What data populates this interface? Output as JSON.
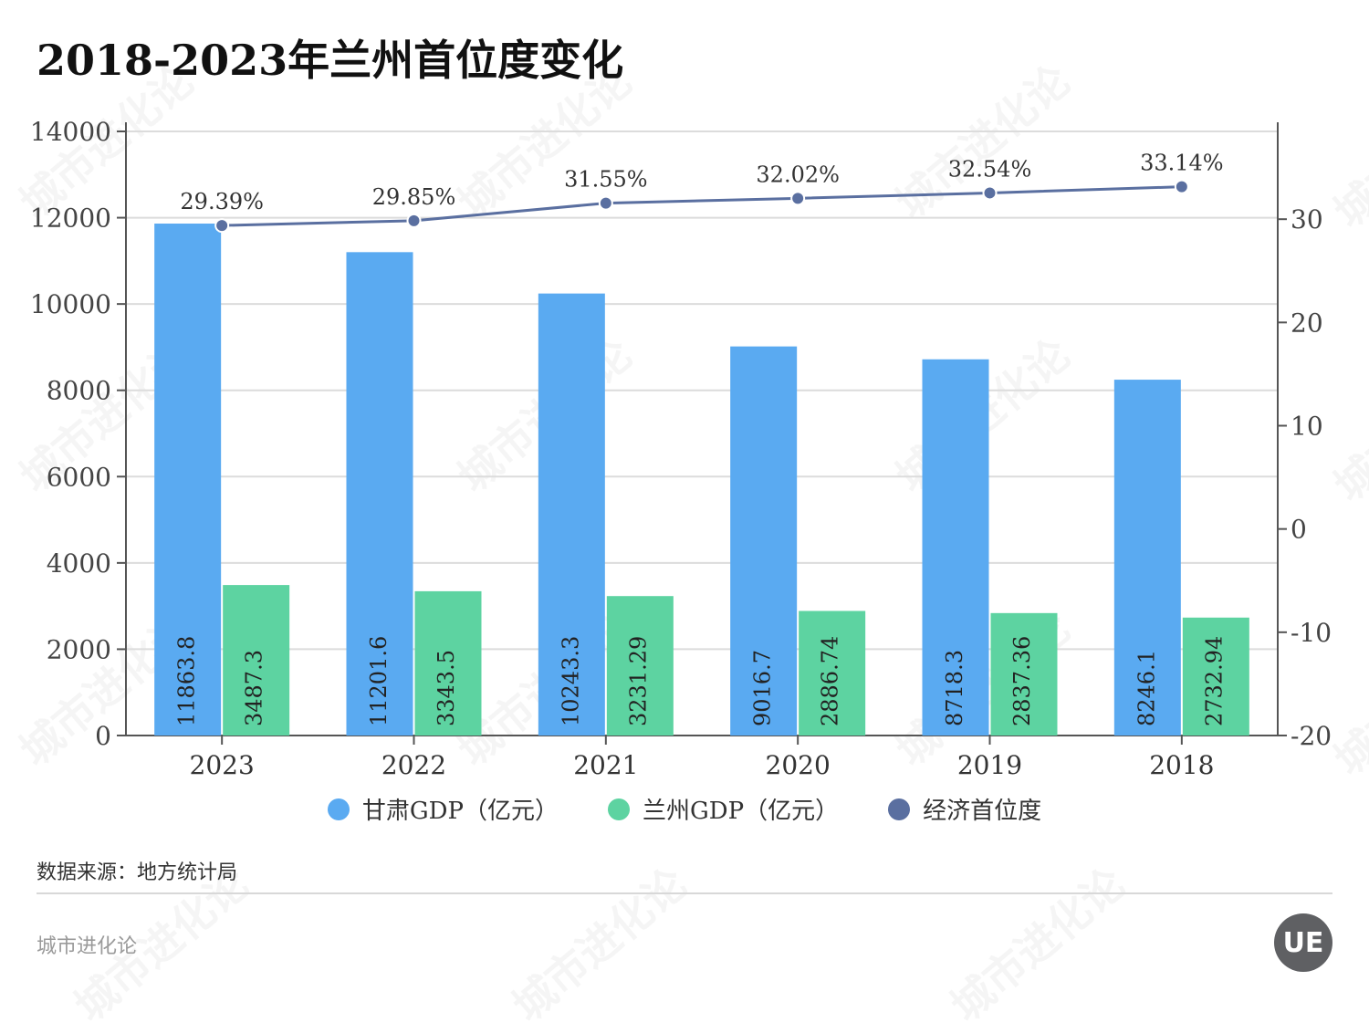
{
  "title": "2018-2023年兰州首位度变化",
  "source": "数据来源：地方统计局",
  "brand": "城市进化论",
  "logo_text": "UE",
  "watermark": "城市进化论",
  "colors": {
    "gansu": "#5aaaf1",
    "lanzhou": "#5dd3a1",
    "ratio": "#5a6fa0",
    "grid": "#dcdcdc",
    "axis": "#555555"
  },
  "legend": [
    {
      "label": "甘肃GDP（亿元）",
      "color": "#5aaaf1"
    },
    {
      "label": "兰州GDP（亿元）",
      "color": "#5dd3a1"
    },
    {
      "label": "经济首位度",
      "color": "#5a6fa0"
    }
  ],
  "chart_data": {
    "type": "bar",
    "categories": [
      "2023",
      "2022",
      "2021",
      "2020",
      "2019",
      "2018"
    ],
    "series": [
      {
        "name": "甘肃GDP（亿元）",
        "values": [
          11863.8,
          11201.6,
          10243.3,
          9016.7,
          8718.3,
          8246.1
        ],
        "labels": [
          "11863.8",
          "11201.6",
          "10243.3",
          "9016.7",
          "8718.3",
          "8246.1"
        ]
      },
      {
        "name": "兰州GDP（亿元）",
        "values": [
          3487.3,
          3343.5,
          3231.29,
          2886.74,
          2837.36,
          2732.94
        ],
        "labels": [
          "3487.3",
          "3343.5",
          "3231.29",
          "2886.74",
          "2837.36",
          "2732.94"
        ]
      },
      {
        "name": "经济首位度",
        "type": "line",
        "axis": "right",
        "values": [
          29.39,
          29.85,
          31.55,
          32.02,
          32.54,
          33.14
        ],
        "labels": [
          "29.39%",
          "29.85%",
          "31.55%",
          "32.02%",
          "32.54%",
          "33.14%"
        ]
      }
    ],
    "ylim": [
      0,
      14000
    ],
    "yticks": [
      "0",
      "2000",
      "4000",
      "6000",
      "8000",
      "10000",
      "12000",
      "14000"
    ],
    "y2lim": [
      -20,
      38.5
    ],
    "y2ticks": [
      "-20",
      "-10",
      "0",
      "10",
      "20",
      "30"
    ],
    "legend_position": "bottom-center",
    "grid": true
  }
}
